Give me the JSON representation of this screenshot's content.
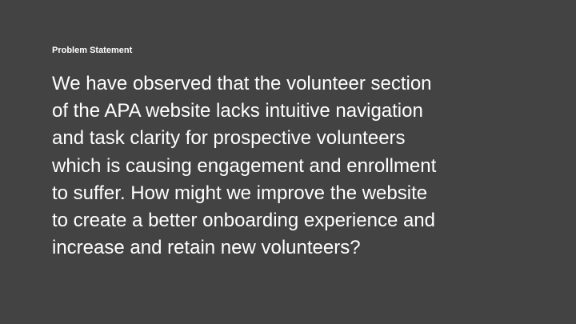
{
  "slide": {
    "label": "Problem Statement",
    "lines": [
      "We have observed that the volunteer section",
      "of the APA website lacks intuitive navigation",
      "and task clarity for prospective volunteers",
      "which is causing engagement and enrollment",
      "to suffer. How might we improve the website",
      "to create a better onboarding experience and",
      "increase and retain new volunteers?"
    ]
  },
  "colors": {
    "background": "#434343",
    "text": "#ffffff"
  }
}
